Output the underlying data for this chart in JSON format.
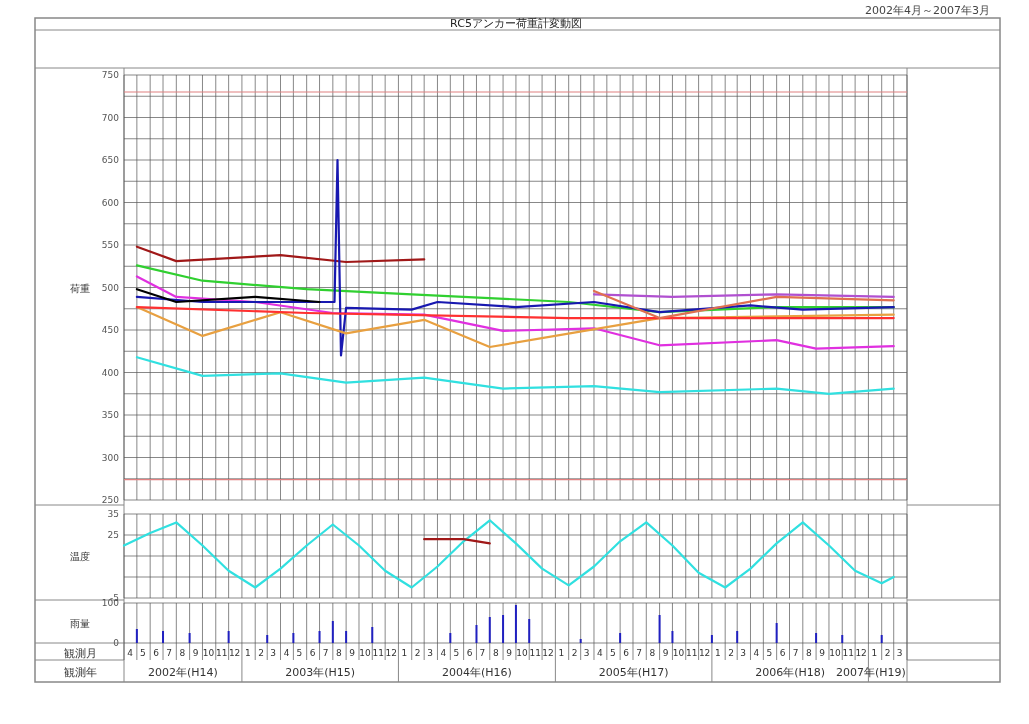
{
  "chart_data": [
    {
      "type": "line",
      "title": "RC5アンカー荷重計変動図",
      "subtitle": "2002年4月～2007年3月",
      "ylabel": "荷重",
      "xlim": [
        "2002-04-01",
        "2007-04-01"
      ],
      "ylim": [
        250,
        750
      ],
      "tick_labels": "y",
      "grid": true,
      "yticks": [
        250,
        {
          "value": 275,
          "label": null
        },
        300,
        {
          "value": 325,
          "label": null
        },
        350,
        {
          "value": 375,
          "label": null
        },
        400,
        {
          "value": 425,
          "label": null
        },
        450,
        {
          "value": 475,
          "label": null
        },
        500,
        {
          "value": 525,
          "label": null
        },
        550,
        {
          "value": 575,
          "label": null
        },
        600,
        {
          "value": 625,
          "label": null
        },
        650,
        {
          "value": 675,
          "label": null
        },
        700,
        {
          "value": 725,
          "label": null
        },
        750
      ],
      "ref_lines": [
        {
          "axis": "y",
          "value": 730,
          "color": "#e08080"
        },
        {
          "axis": "y",
          "value": 274,
          "color": "#e08080"
        }
      ],
      "series": [
        {
          "color": "#a01818",
          "x": [
            "2002-05",
            "2002-08",
            "2003-04",
            "2003-09",
            "2004-03"
          ],
          "values": [
            548,
            531,
            538,
            530,
            533
          ]
        },
        {
          "color": "#30d030",
          "x": [
            "2002-05",
            "2002-10",
            "2003-06",
            "2004-02",
            "2005-02",
            "2005-09",
            "2006-06",
            "2007-03"
          ],
          "values": [
            526,
            508,
            498,
            492,
            483,
            471,
            477,
            477
          ]
        },
        {
          "color": "#30e0e0",
          "x": [
            "2002-05",
            "2002-10",
            "2003-04",
            "2003-09",
            "2004-03",
            "2004-09",
            "2005-04",
            "2005-09",
            "2006-06",
            "2006-10",
            "2007-03"
          ],
          "values": [
            418,
            396,
            399,
            388,
            394,
            381,
            384,
            377,
            381,
            375,
            381
          ]
        },
        {
          "color": "#e030e0",
          "x": [
            "2002-05",
            "2002-08",
            "2003-02",
            "2003-08",
            "2004-03",
            "2004-09",
            "2005-04",
            "2005-09",
            "2006-06",
            "2006-09",
            "2007-03"
          ],
          "values": [
            513,
            489,
            483,
            470,
            468,
            449,
            452,
            432,
            438,
            428,
            431
          ]
        },
        {
          "color": "#1818b0",
          "x": [
            "2002-05",
            "2002-10",
            "2003-06",
            "2003-08-05",
            "2003-08-12",
            "2003-08-20",
            "2003-09",
            "2004-02",
            "2004-04",
            "2004-10",
            "2005-04",
            "2005-09",
            "2006-04",
            "2006-08",
            "2007-03"
          ],
          "values": [
            489,
            483,
            483,
            483,
            650,
            420,
            476,
            474,
            483,
            477,
            483,
            471,
            479,
            474,
            477
          ]
        },
        {
          "color": "#000000",
          "x": [
            "2002-05",
            "2002-08",
            "2003-02",
            "2003-07"
          ],
          "values": [
            498,
            483,
            489,
            483
          ]
        },
        {
          "color": "#e8a040",
          "x": [
            "2002-05",
            "2002-10",
            "2003-04",
            "2003-09",
            "2004-03",
            "2004-08",
            "2005-09",
            "2007-03"
          ],
          "values": [
            477,
            443,
            471,
            446,
            462,
            430,
            464,
            468
          ]
        },
        {
          "color": "#ff3030",
          "x": [
            "2002-05",
            "2003-06",
            "2005-02",
            "2007-03"
          ],
          "values": [
            477,
            470,
            464,
            464
          ]
        },
        {
          "color": "#b050d0",
          "x": [
            "2005-04",
            "2005-10",
            "2006-06",
            "2007-03"
          ],
          "values": [
            492,
            489,
            492,
            489
          ]
        },
        {
          "color": "#e07050",
          "x": [
            "2005-04",
            "2005-09",
            "2006-06",
            "2007-03"
          ],
          "values": [
            496,
            464,
            489,
            485
          ]
        }
      ]
    },
    {
      "type": "line",
      "ylabel": "温度",
      "xlim": [
        "2002-04-01",
        "2007-04-01"
      ],
      "ylim": [
        -5,
        35
      ],
      "tick_labels": "y",
      "grid": true,
      "yticks": [
        -5,
        {
          "value": 5,
          "label": null
        },
        {
          "value": 15,
          "label": null
        },
        25,
        35
      ],
      "series": [
        {
          "color": "#30e0e0",
          "x": [
            "2002-04",
            "2002-06",
            "2002-08",
            "2002-10",
            "2002-12",
            "2003-02",
            "2003-04",
            "2003-06",
            "2003-08",
            "2003-10",
            "2003-12",
            "2004-02",
            "2004-04",
            "2004-06",
            "2004-08",
            "2004-10",
            "2004-12",
            "2005-02",
            "2005-04",
            "2005-06",
            "2005-08",
            "2005-10",
            "2005-12",
            "2006-02",
            "2006-04",
            "2006-06",
            "2006-08",
            "2006-10",
            "2006-12",
            "2007-02",
            "2007-03"
          ],
          "values": [
            20,
            26,
            31,
            20,
            8,
            0,
            9,
            20,
            30,
            20,
            8,
            0,
            10,
            22,
            32,
            21,
            9,
            1,
            10,
            22,
            31,
            20,
            7,
            0,
            9,
            21,
            31,
            20,
            8,
            2,
            5
          ]
        },
        {
          "color": "#a01818",
          "x": [
            "2004-03",
            "2004-06",
            "2004-08"
          ],
          "values": [
            23,
            23,
            21
          ]
        }
      ]
    },
    {
      "type": "bar",
      "ylabel": "雨量",
      "xlim": [
        "2002-04-01",
        "2007-04-01"
      ],
      "ylim": [
        0,
        100
      ],
      "yticks": [
        0,
        100
      ],
      "grid": true,
      "color": "#2020c0",
      "x": [
        "2002-05",
        "2002-07",
        "2002-09",
        "2002-12",
        "2003-03",
        "2003-05",
        "2003-07",
        "2003-08",
        "2003-09",
        "2003-11",
        "2004-05",
        "2004-07",
        "2004-08",
        "2004-09",
        "2004-10",
        "2004-11",
        "2005-03",
        "2005-06",
        "2005-09",
        "2005-10",
        "2006-01",
        "2006-03",
        "2006-06",
        "2006-09",
        "2006-11",
        "2007-02"
      ],
      "values": [
        35,
        30,
        25,
        30,
        20,
        25,
        30,
        55,
        30,
        40,
        25,
        45,
        65,
        70,
        95,
        60,
        10,
        25,
        70,
        30,
        20,
        30,
        50,
        25,
        20,
        20
      ],
      "xticks": [
        {
          "value": "2002-04-15",
          "label": "4"
        },
        {
          "value": "2002-05-15",
          "label": "5"
        },
        {
          "value": "2002-06-15",
          "label": "6"
        },
        {
          "value": "2002-07-15",
          "label": "7"
        },
        {
          "value": "2002-08-15",
          "label": "8"
        },
        {
          "value": "2002-09-15",
          "label": "9"
        },
        {
          "value": "2002-10-15",
          "label": "10"
        },
        {
          "value": "2002-11-15",
          "label": "11"
        },
        {
          "value": "2002-12-15",
          "label": "12"
        },
        {
          "value": "2003-01-15",
          "label": "1"
        },
        {
          "value": "2003-02-15",
          "label": "2"
        },
        {
          "value": "2003-03-15",
          "label": "3"
        },
        {
          "value": "2003-04-15",
          "label": "4"
        },
        {
          "value": "2003-05-15",
          "label": "5"
        },
        {
          "value": "2003-06-15",
          "label": "6"
        },
        {
          "value": "2003-07-15",
          "label": "7"
        },
        {
          "value": "2003-08-15",
          "label": "8"
        },
        {
          "value": "2003-09-15",
          "label": "9"
        },
        {
          "value": "2003-10-15",
          "label": "10"
        },
        {
          "value": "2003-11-15",
          "label": "11"
        },
        {
          "value": "2003-12-15",
          "label": "12"
        },
        {
          "value": "2004-01-15",
          "label": "1"
        },
        {
          "value": "2004-02-15",
          "label": "2"
        },
        {
          "value": "2004-03-15",
          "label": "3"
        },
        {
          "value": "2004-04-15",
          "label": "4"
        },
        {
          "value": "2004-05-15",
          "label": "5"
        },
        {
          "value": "2004-06-15",
          "label": "6"
        },
        {
          "value": "2004-07-15",
          "label": "7"
        },
        {
          "value": "2004-08-15",
          "label": "8"
        },
        {
          "value": "2004-09-15",
          "label": "9"
        },
        {
          "value": "2004-10-15",
          "label": "10"
        },
        {
          "value": "2004-11-15",
          "label": "11"
        },
        {
          "value": "2004-12-15",
          "label": "12"
        },
        {
          "value": "2005-01-15",
          "label": "1"
        },
        {
          "value": "2005-02-15",
          "label": "2"
        },
        {
          "value": "2005-03-15",
          "label": "3"
        },
        {
          "value": "2005-04-15",
          "label": "4"
        },
        {
          "value": "2005-05-15",
          "label": "5"
        },
        {
          "value": "2005-06-15",
          "label": "6"
        },
        {
          "value": "2005-07-15",
          "label": "7"
        },
        {
          "value": "2005-08-15",
          "label": "8"
        },
        {
          "value": "2005-09-15",
          "label": "9"
        },
        {
          "value": "2005-10-15",
          "label": "10"
        },
        {
          "value": "2005-11-15",
          "label": "11"
        },
        {
          "value": "2005-12-15",
          "label": "12"
        },
        {
          "value": "2006-01-15",
          "label": "1"
        },
        {
          "value": "2006-02-15",
          "label": "2"
        },
        {
          "value": "2006-03-15",
          "label": "3"
        },
        {
          "value": "2006-04-15",
          "label": "4"
        },
        {
          "value": "2006-05-15",
          "label": "5"
        },
        {
          "value": "2006-06-15",
          "label": "6"
        },
        {
          "value": "2006-07-15",
          "label": "7"
        },
        {
          "value": "2006-08-15",
          "label": "8"
        },
        {
          "value": "2006-09-15",
          "label": "9"
        },
        {
          "value": "2006-10-15",
          "label": "10"
        },
        {
          "value": "2006-11-15",
          "label": "11"
        },
        {
          "value": "2006-12-15",
          "label": "12"
        },
        {
          "value": "2007-01-15",
          "label": "1"
        },
        {
          "value": "2007-02-15",
          "label": "2"
        },
        {
          "value": "2007-03-15",
          "label": "3"
        }
      ],
      "annotations": [
        "観測月",
        "観測年",
        "2002年(H14)",
        "2003年(H15)",
        "2004年(H16)",
        "2005年(H17)",
        "2006年(H18)",
        "2007年(H19)"
      ]
    }
  ]
}
